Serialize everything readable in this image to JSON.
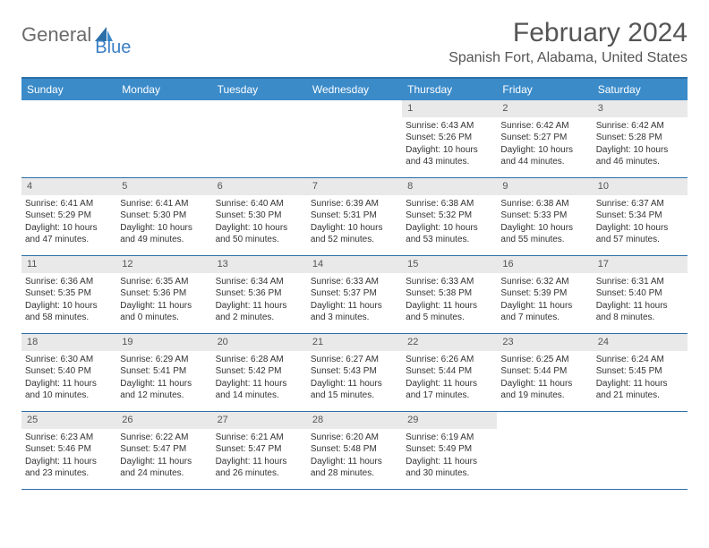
{
  "logo": {
    "text1": "General",
    "text2": "Blue"
  },
  "title": "February 2024",
  "location": "Spanish Fort, Alabama, United States",
  "colors": {
    "header_bg": "#3b8bc9",
    "header_text": "#ffffff",
    "border": "#2b6fa8",
    "daynum_bg": "#e9e9e9",
    "logo_gray": "#6b6b6b",
    "logo_blue": "#3b7fc4"
  },
  "daysOfWeek": [
    "Sunday",
    "Monday",
    "Tuesday",
    "Wednesday",
    "Thursday",
    "Friday",
    "Saturday"
  ],
  "weeks": [
    [
      {
        "empty": true
      },
      {
        "empty": true
      },
      {
        "empty": true
      },
      {
        "empty": true
      },
      {
        "num": "1",
        "sunrise": "Sunrise: 6:43 AM",
        "sunset": "Sunset: 5:26 PM",
        "dl1": "Daylight: 10 hours",
        "dl2": "and 43 minutes."
      },
      {
        "num": "2",
        "sunrise": "Sunrise: 6:42 AM",
        "sunset": "Sunset: 5:27 PM",
        "dl1": "Daylight: 10 hours",
        "dl2": "and 44 minutes."
      },
      {
        "num": "3",
        "sunrise": "Sunrise: 6:42 AM",
        "sunset": "Sunset: 5:28 PM",
        "dl1": "Daylight: 10 hours",
        "dl2": "and 46 minutes."
      }
    ],
    [
      {
        "num": "4",
        "sunrise": "Sunrise: 6:41 AM",
        "sunset": "Sunset: 5:29 PM",
        "dl1": "Daylight: 10 hours",
        "dl2": "and 47 minutes."
      },
      {
        "num": "5",
        "sunrise": "Sunrise: 6:41 AM",
        "sunset": "Sunset: 5:30 PM",
        "dl1": "Daylight: 10 hours",
        "dl2": "and 49 minutes."
      },
      {
        "num": "6",
        "sunrise": "Sunrise: 6:40 AM",
        "sunset": "Sunset: 5:30 PM",
        "dl1": "Daylight: 10 hours",
        "dl2": "and 50 minutes."
      },
      {
        "num": "7",
        "sunrise": "Sunrise: 6:39 AM",
        "sunset": "Sunset: 5:31 PM",
        "dl1": "Daylight: 10 hours",
        "dl2": "and 52 minutes."
      },
      {
        "num": "8",
        "sunrise": "Sunrise: 6:38 AM",
        "sunset": "Sunset: 5:32 PM",
        "dl1": "Daylight: 10 hours",
        "dl2": "and 53 minutes."
      },
      {
        "num": "9",
        "sunrise": "Sunrise: 6:38 AM",
        "sunset": "Sunset: 5:33 PM",
        "dl1": "Daylight: 10 hours",
        "dl2": "and 55 minutes."
      },
      {
        "num": "10",
        "sunrise": "Sunrise: 6:37 AM",
        "sunset": "Sunset: 5:34 PM",
        "dl1": "Daylight: 10 hours",
        "dl2": "and 57 minutes."
      }
    ],
    [
      {
        "num": "11",
        "sunrise": "Sunrise: 6:36 AM",
        "sunset": "Sunset: 5:35 PM",
        "dl1": "Daylight: 10 hours",
        "dl2": "and 58 minutes."
      },
      {
        "num": "12",
        "sunrise": "Sunrise: 6:35 AM",
        "sunset": "Sunset: 5:36 PM",
        "dl1": "Daylight: 11 hours",
        "dl2": "and 0 minutes."
      },
      {
        "num": "13",
        "sunrise": "Sunrise: 6:34 AM",
        "sunset": "Sunset: 5:36 PM",
        "dl1": "Daylight: 11 hours",
        "dl2": "and 2 minutes."
      },
      {
        "num": "14",
        "sunrise": "Sunrise: 6:33 AM",
        "sunset": "Sunset: 5:37 PM",
        "dl1": "Daylight: 11 hours",
        "dl2": "and 3 minutes."
      },
      {
        "num": "15",
        "sunrise": "Sunrise: 6:33 AM",
        "sunset": "Sunset: 5:38 PM",
        "dl1": "Daylight: 11 hours",
        "dl2": "and 5 minutes."
      },
      {
        "num": "16",
        "sunrise": "Sunrise: 6:32 AM",
        "sunset": "Sunset: 5:39 PM",
        "dl1": "Daylight: 11 hours",
        "dl2": "and 7 minutes."
      },
      {
        "num": "17",
        "sunrise": "Sunrise: 6:31 AM",
        "sunset": "Sunset: 5:40 PM",
        "dl1": "Daylight: 11 hours",
        "dl2": "and 8 minutes."
      }
    ],
    [
      {
        "num": "18",
        "sunrise": "Sunrise: 6:30 AM",
        "sunset": "Sunset: 5:40 PM",
        "dl1": "Daylight: 11 hours",
        "dl2": "and 10 minutes."
      },
      {
        "num": "19",
        "sunrise": "Sunrise: 6:29 AM",
        "sunset": "Sunset: 5:41 PM",
        "dl1": "Daylight: 11 hours",
        "dl2": "and 12 minutes."
      },
      {
        "num": "20",
        "sunrise": "Sunrise: 6:28 AM",
        "sunset": "Sunset: 5:42 PM",
        "dl1": "Daylight: 11 hours",
        "dl2": "and 14 minutes."
      },
      {
        "num": "21",
        "sunrise": "Sunrise: 6:27 AM",
        "sunset": "Sunset: 5:43 PM",
        "dl1": "Daylight: 11 hours",
        "dl2": "and 15 minutes."
      },
      {
        "num": "22",
        "sunrise": "Sunrise: 6:26 AM",
        "sunset": "Sunset: 5:44 PM",
        "dl1": "Daylight: 11 hours",
        "dl2": "and 17 minutes."
      },
      {
        "num": "23",
        "sunrise": "Sunrise: 6:25 AM",
        "sunset": "Sunset: 5:44 PM",
        "dl1": "Daylight: 11 hours",
        "dl2": "and 19 minutes."
      },
      {
        "num": "24",
        "sunrise": "Sunrise: 6:24 AM",
        "sunset": "Sunset: 5:45 PM",
        "dl1": "Daylight: 11 hours",
        "dl2": "and 21 minutes."
      }
    ],
    [
      {
        "num": "25",
        "sunrise": "Sunrise: 6:23 AM",
        "sunset": "Sunset: 5:46 PM",
        "dl1": "Daylight: 11 hours",
        "dl2": "and 23 minutes."
      },
      {
        "num": "26",
        "sunrise": "Sunrise: 6:22 AM",
        "sunset": "Sunset: 5:47 PM",
        "dl1": "Daylight: 11 hours",
        "dl2": "and 24 minutes."
      },
      {
        "num": "27",
        "sunrise": "Sunrise: 6:21 AM",
        "sunset": "Sunset: 5:47 PM",
        "dl1": "Daylight: 11 hours",
        "dl2": "and 26 minutes."
      },
      {
        "num": "28",
        "sunrise": "Sunrise: 6:20 AM",
        "sunset": "Sunset: 5:48 PM",
        "dl1": "Daylight: 11 hours",
        "dl2": "and 28 minutes."
      },
      {
        "num": "29",
        "sunrise": "Sunrise: 6:19 AM",
        "sunset": "Sunset: 5:49 PM",
        "dl1": "Daylight: 11 hours",
        "dl2": "and 30 minutes."
      },
      {
        "empty": true
      },
      {
        "empty": true
      }
    ]
  ]
}
